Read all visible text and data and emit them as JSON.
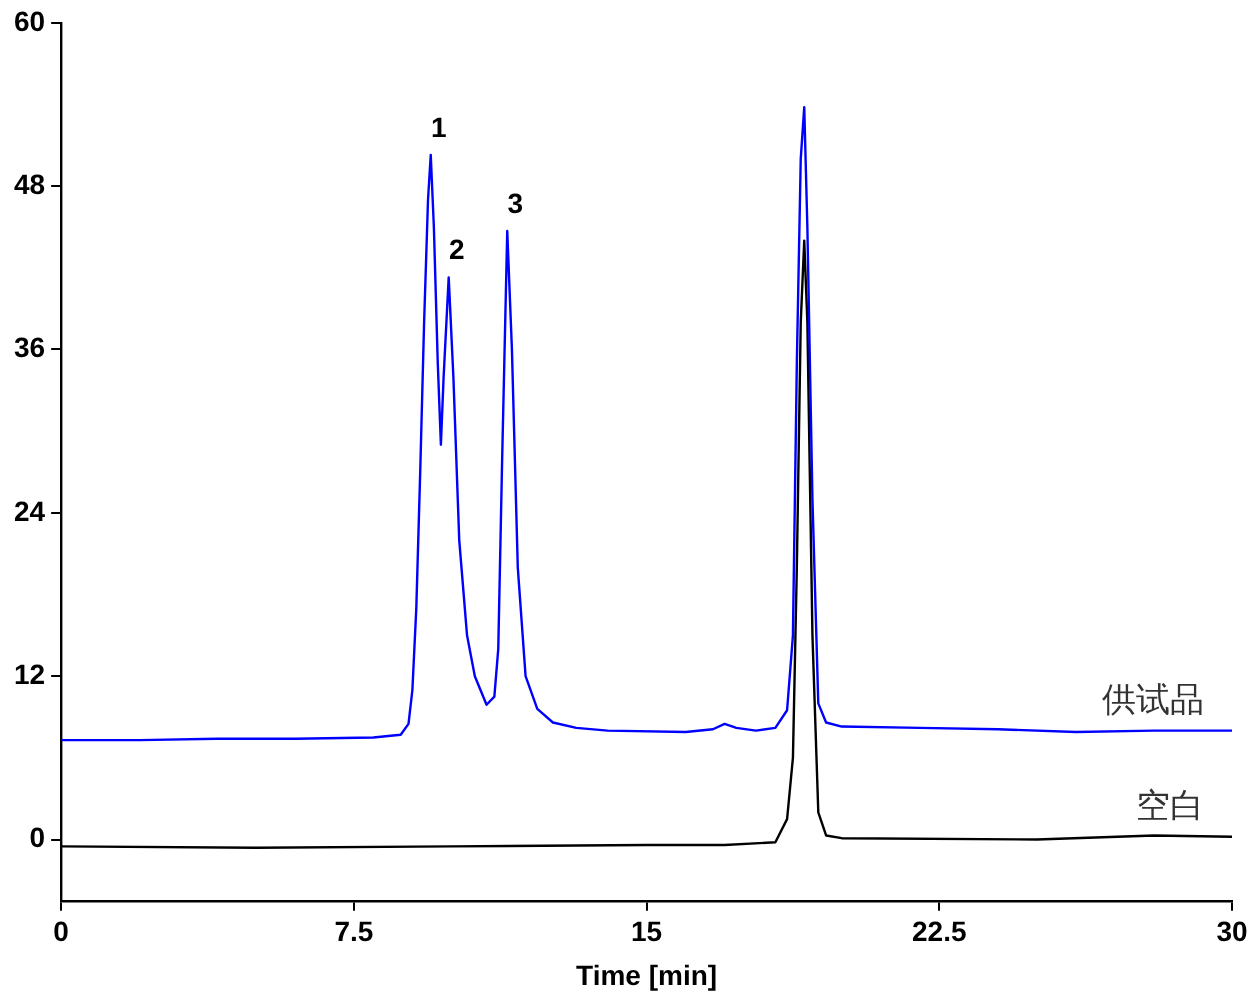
{
  "chart_data": {
    "type": "line",
    "xlabel": "Time [min]",
    "xlim": [
      0,
      30
    ],
    "xticks": [
      0,
      7.5,
      15,
      22.5,
      30
    ],
    "ylim": [
      -4.5,
      60
    ],
    "yticks": [
      0,
      12,
      24,
      36,
      48,
      60
    ],
    "grid": false,
    "legend": false,
    "marker": "none",
    "line_style": "solid",
    "series": [
      {
        "name": "供试品",
        "color": "#0000ff",
        "x": [
          0,
          2,
          4,
          6,
          8,
          8.7,
          8.9,
          9.0,
          9.1,
          9.2,
          9.3,
          9.4,
          9.47,
          9.55,
          9.65,
          9.73,
          9.8,
          9.93,
          10.05,
          10.2,
          10.4,
          10.6,
          10.9,
          11.1,
          11.2,
          11.3,
          11.43,
          11.55,
          11.7,
          11.9,
          12.2,
          12.6,
          13.2,
          14,
          16,
          16.7,
          17.0,
          17.3,
          17.8,
          18.3,
          18.6,
          18.75,
          18.85,
          18.95,
          19.04,
          19.12,
          19.25,
          19.4,
          19.6,
          20,
          22,
          24,
          26,
          28,
          30
        ],
        "values": [
          7.3,
          7.3,
          7.4,
          7.4,
          7.5,
          7.7,
          8.5,
          11,
          17,
          27,
          38,
          47,
          50.3,
          45,
          35,
          29,
          34,
          41.3,
          34,
          22,
          15,
          12,
          9.9,
          10.5,
          14,
          28,
          44.7,
          36,
          20,
          12,
          9.6,
          8.6,
          8.2,
          8.0,
          7.9,
          8.1,
          8.5,
          8.2,
          8.0,
          8.2,
          9.5,
          15,
          35,
          50,
          53.8,
          45,
          25,
          10,
          8.6,
          8.3,
          8.2,
          8.1,
          7.9,
          8.0,
          8.0
        ]
      },
      {
        "name": "空白",
        "color": "#000000",
        "x": [
          0,
          5,
          10,
          15,
          17,
          18.3,
          18.6,
          18.75,
          18.85,
          18.95,
          19.04,
          19.12,
          19.25,
          19.4,
          19.6,
          20,
          25,
          28,
          30
        ],
        "values": [
          -0.5,
          -0.6,
          -0.5,
          -0.4,
          -0.4,
          -0.2,
          1.5,
          6,
          20,
          38,
          44,
          38,
          15,
          2,
          0.3,
          0.1,
          0,
          0.3,
          0.2
        ]
      }
    ],
    "annotations": [
      {
        "text": "1",
        "x": 9.47,
        "y": 50.3
      },
      {
        "text": "2",
        "x": 9.93,
        "y": 41.3
      },
      {
        "text": "3",
        "x": 11.43,
        "y": 44.7
      }
    ]
  }
}
